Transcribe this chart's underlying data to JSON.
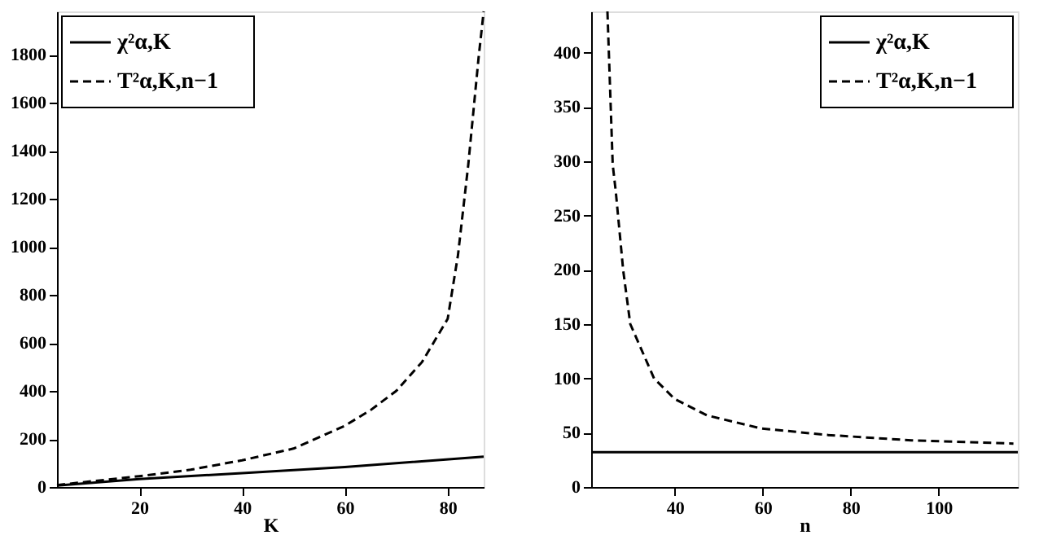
{
  "chart_data": [
    {
      "type": "line",
      "xlabel": "K",
      "xlim": [
        4,
        87
      ],
      "xticks": [
        20,
        40,
        60,
        80
      ],
      "ylim": [
        0,
        1980
      ],
      "yticks": [
        0,
        200,
        400,
        600,
        800,
        1000,
        1200,
        1400,
        1600,
        1800
      ],
      "grid": false,
      "legend": "top left",
      "marker": "none",
      "series": [
        {
          "name": "χ²α,K",
          "color": "#000000",
          "line_style": "solid",
          "x": [
            4,
            20,
            40,
            60,
            87
          ],
          "values": [
            6,
            33,
            58,
            83,
            126
          ]
        },
        {
          "name": "T²α,K,n−1",
          "color": "#000000",
          "line_style": "dashed",
          "x": [
            4,
            10,
            20,
            30,
            40,
            50,
            60,
            65,
            70,
            75,
            80,
            82,
            84,
            86,
            87
          ],
          "values": [
            8,
            22,
            45,
            72,
            111,
            160,
            255,
            320,
            400,
            520,
            700,
            965,
            1341,
            1785,
            1980
          ]
        }
      ]
    },
    {
      "type": "line",
      "xlabel": "n",
      "xlim": [
        21,
        118
      ],
      "xticks": [
        40,
        60,
        80,
        100
      ],
      "ylim": [
        0,
        438
      ],
      "yticks": [
        0,
        50,
        100,
        150,
        200,
        250,
        300,
        350,
        400
      ],
      "grid": false,
      "legend": "top right",
      "marker": "none",
      "series": [
        {
          "name": "χ²α,K",
          "color": "#000000",
          "line_style": "solid",
          "x": [
            21,
            118
          ],
          "values": [
            32,
            32
          ]
        },
        {
          "name": "T²α,K,n−1",
          "color": "#000000",
          "line_style": "dashed",
          "x": [
            24.7,
            25.9,
            26.6,
            28.3,
            29.9,
            35.3,
            40,
            47.3,
            59.6,
            74.3,
            93.8,
            117
          ],
          "values": [
            438,
            297,
            272,
            199,
            150,
            100,
            81,
            66,
            54,
            48,
            43,
            40
          ]
        }
      ]
    }
  ]
}
